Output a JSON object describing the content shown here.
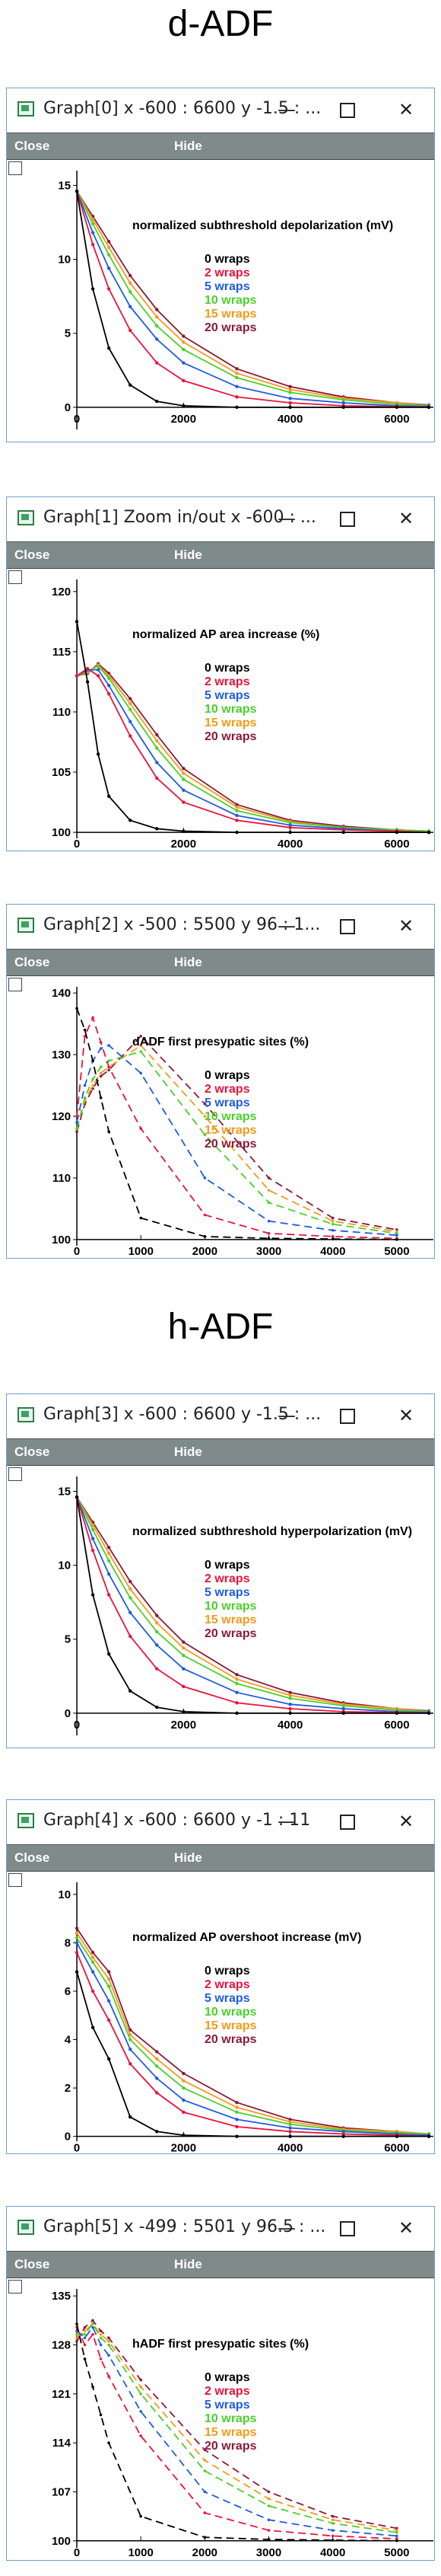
{
  "headings": [
    "d-ADF",
    "h-ADF"
  ],
  "toolbar": {
    "close_label": "Close",
    "hide_label": "Hide"
  },
  "window_controls": {
    "minimize": "—",
    "close": "✕"
  },
  "icons": {
    "app": "graph-window-icon"
  },
  "legend": {
    "labels": [
      "0 wraps",
      "2 wraps",
      "5 wraps",
      "10 wraps",
      "15 wraps",
      "20 wraps"
    ],
    "colors": [
      "#000000",
      "#e8143c",
      "#1f5ce0",
      "#4ccf2e",
      "#f59a1a",
      "#8b1a3a"
    ]
  },
  "windows": [
    {
      "title": "Graph[0]  x -600 : 6600  y -1.5 : ...",
      "plot_title": "normalized subthreshold depolarization (mV)",
      "y_ticks": [
        "0",
        "5",
        "10",
        "15"
      ],
      "x_ticks": [
        "0",
        "2000",
        "4000",
        "6000"
      ]
    },
    {
      "title": "Graph[1] Zoom in/out x -600 : ...",
      "plot_title": "normalized AP area increase (%)",
      "y_ticks": [
        "100",
        "105",
        "110",
        "115",
        "120"
      ],
      "x_ticks": [
        "0",
        "2000",
        "4000",
        "6000"
      ]
    },
    {
      "title": "Graph[2]  x -500 : 5500  y 96 : 1...",
      "plot_title": "dADF first presypatic sites (%)",
      "y_ticks": [
        "100",
        "110",
        "120",
        "130",
        "140"
      ],
      "x_ticks": [
        "0",
        "1000",
        "2000",
        "3000",
        "4000",
        "5000"
      ]
    },
    {
      "title": "Graph[3]  x -600 : 6600  y -1.5 : ...",
      "plot_title": "normalized subthreshold hyperpolarization (mV)",
      "y_ticks": [
        "0",
        "5",
        "10",
        "15"
      ],
      "x_ticks": [
        "0",
        "2000",
        "4000",
        "6000"
      ]
    },
    {
      "title": "Graph[4]  x -600 : 6600  y -1 : 11",
      "plot_title": "normalized AP overshoot increase (mV)",
      "y_ticks": [
        "0",
        "2",
        "4",
        "6",
        "8",
        "10"
      ],
      "x_ticks": [
        "0",
        "2000",
        "4000",
        "6000"
      ]
    },
    {
      "title": "Graph[5]  x -499 : 5501  y 96.5 : ...",
      "plot_title": "hADF first presypatic sites (%)",
      "y_ticks": [
        "100",
        "107",
        "114",
        "121",
        "128",
        "135"
      ],
      "x_ticks": [
        "0",
        "1000",
        "2000",
        "3000",
        "4000",
        "5000"
      ]
    }
  ],
  "chart_data": [
    {
      "type": "line",
      "title": "normalized subthreshold depolarization (mV)",
      "xlim": [
        -600,
        6600
      ],
      "ylim": [
        -1.5,
        16
      ],
      "x": [
        0,
        300,
        600,
        1000,
        1500,
        2000,
        3000,
        4000,
        5000,
        6000,
        6600
      ],
      "series": [
        {
          "name": "0 wraps",
          "values": [
            14.6,
            8.0,
            4.0,
            1.5,
            0.4,
            0.1,
            0,
            0,
            0,
            0,
            0
          ]
        },
        {
          "name": "2 wraps",
          "values": [
            14.6,
            11.0,
            8.0,
            5.2,
            3.0,
            1.8,
            0.7,
            0.3,
            0.1,
            0.05,
            0
          ]
        },
        {
          "name": "5 wraps",
          "values": [
            14.6,
            11.8,
            9.4,
            6.8,
            4.6,
            3.0,
            1.4,
            0.6,
            0.3,
            0.1,
            0.05
          ]
        },
        {
          "name": "10 wraps",
          "values": [
            14.6,
            12.4,
            10.3,
            7.8,
            5.5,
            3.9,
            2.0,
            1.0,
            0.5,
            0.2,
            0.1
          ]
        },
        {
          "name": "15 wraps",
          "values": [
            14.6,
            12.7,
            10.8,
            8.4,
            6.1,
            4.4,
            2.3,
            1.2,
            0.6,
            0.3,
            0.1
          ]
        },
        {
          "name": "20 wraps",
          "values": [
            14.6,
            12.9,
            11.2,
            8.9,
            6.6,
            4.8,
            2.6,
            1.4,
            0.7,
            0.3,
            0.15
          ]
        }
      ]
    },
    {
      "type": "line",
      "title": "normalized AP area increase (%)",
      "xlim": [
        -600,
        6600
      ],
      "ylim": [
        99.5,
        121
      ],
      "x": [
        0,
        200,
        400,
        600,
        1000,
        1500,
        2000,
        3000,
        4000,
        5000,
        6000,
        6600
      ],
      "series": [
        {
          "name": "0 wraps",
          "values": [
            117.5,
            112.5,
            106.5,
            103.0,
            101.0,
            100.3,
            100.1,
            100,
            100,
            100,
            100,
            100
          ]
        },
        {
          "name": "2 wraps",
          "values": [
            113.0,
            113.6,
            113.0,
            111.5,
            108.0,
            104.5,
            102.5,
            101.0,
            100.4,
            100.2,
            100.1,
            100
          ]
        },
        {
          "name": "5 wraps",
          "values": [
            113.0,
            113.5,
            113.5,
            112.2,
            109.2,
            105.8,
            103.5,
            101.4,
            100.6,
            100.3,
            100.1,
            100
          ]
        },
        {
          "name": "10 wraps",
          "values": [
            113.0,
            113.4,
            113.8,
            112.8,
            110.2,
            107.0,
            104.4,
            101.8,
            100.8,
            100.4,
            100.2,
            100.1
          ]
        },
        {
          "name": "15 wraps",
          "values": [
            113.0,
            113.3,
            113.9,
            113.0,
            110.7,
            107.6,
            104.9,
            102.1,
            100.9,
            100.4,
            100.2,
            100.1
          ]
        },
        {
          "name": "20 wraps",
          "values": [
            113.0,
            113.2,
            114.0,
            113.2,
            111.1,
            108.1,
            105.3,
            102.3,
            101.0,
            100.5,
            100.2,
            100.1
          ]
        }
      ]
    },
    {
      "type": "line",
      "title": "dADF first presypatic sites (%)",
      "xlim": [
        -500,
        5500
      ],
      "ylim": [
        99,
        141
      ],
      "x": [
        0,
        125,
        250,
        375,
        500,
        1000,
        2000,
        3000,
        4000,
        5000
      ],
      "series": [
        {
          "name": "0 wraps",
          "values": [
            137.5,
            134.0,
            129.0,
            123.0,
            117.5,
            103.5,
            100.5,
            100.2,
            100.1,
            100
          ]
        },
        {
          "name": "2 wraps",
          "values": [
            120.0,
            133.0,
            136.0,
            132.0,
            128.0,
            118.0,
            104.0,
            101.0,
            100.5,
            100.2
          ]
        },
        {
          "name": "5 wraps",
          "values": [
            119.0,
            125.0,
            129.0,
            131.0,
            131.5,
            127.0,
            110.0,
            103.0,
            101.5,
            100.7
          ]
        },
        {
          "name": "10 wraps",
          "values": [
            118.0,
            123.0,
            126.0,
            128.0,
            129.0,
            130.5,
            117.0,
            106.0,
            102.5,
            101.0
          ]
        },
        {
          "name": "15 wraps",
          "values": [
            118.0,
            122.5,
            125.0,
            127.0,
            128.0,
            131.5,
            120.0,
            108.0,
            103.0,
            101.3
          ]
        },
        {
          "name": "20 wraps",
          "values": [
            117.5,
            122.0,
            124.5,
            126.5,
            127.5,
            133.0,
            122.0,
            110.0,
            103.5,
            101.6
          ]
        }
      ]
    },
    {
      "type": "line",
      "title": "normalized subthreshold hyperpolarization (mV)",
      "xlim": [
        -600,
        6600
      ],
      "ylim": [
        -1.5,
        16
      ],
      "x": [
        0,
        300,
        600,
        1000,
        1500,
        2000,
        3000,
        4000,
        5000,
        6000,
        6600
      ],
      "series": [
        {
          "name": "0 wraps",
          "values": [
            14.6,
            8.0,
            4.0,
            1.5,
            0.4,
            0.1,
            0,
            0,
            0,
            0,
            0
          ]
        },
        {
          "name": "2 wraps",
          "values": [
            14.6,
            11.0,
            8.0,
            5.2,
            3.0,
            1.8,
            0.7,
            0.3,
            0.1,
            0.05,
            0
          ]
        },
        {
          "name": "5 wraps",
          "values": [
            14.6,
            11.8,
            9.4,
            6.8,
            4.6,
            3.0,
            1.4,
            0.6,
            0.3,
            0.1,
            0.05
          ]
        },
        {
          "name": "10 wraps",
          "values": [
            14.6,
            12.4,
            10.3,
            7.8,
            5.5,
            3.9,
            2.0,
            1.0,
            0.5,
            0.2,
            0.1
          ]
        },
        {
          "name": "15 wraps",
          "values": [
            14.6,
            12.7,
            10.8,
            8.4,
            6.1,
            4.4,
            2.3,
            1.2,
            0.6,
            0.3,
            0.1
          ]
        },
        {
          "name": "20 wraps",
          "values": [
            14.6,
            12.9,
            11.2,
            8.9,
            6.6,
            4.8,
            2.6,
            1.4,
            0.7,
            0.3,
            0.15
          ]
        }
      ]
    },
    {
      "type": "line",
      "title": "normalized AP overshoot increase (mV)",
      "xlim": [
        -600,
        6600
      ],
      "ylim": [
        -0.2,
        10.5
      ],
      "x": [
        0,
        300,
        600,
        1000,
        1500,
        2000,
        3000,
        4000,
        5000,
        6000,
        6600
      ],
      "series": [
        {
          "name": "0 wraps",
          "values": [
            6.8,
            4.5,
            3.2,
            0.8,
            0.2,
            0.05,
            0,
            0,
            0,
            0,
            0
          ]
        },
        {
          "name": "2 wraps",
          "values": [
            7.6,
            6.0,
            4.8,
            3.0,
            1.8,
            1.0,
            0.4,
            0.2,
            0.1,
            0.05,
            0
          ]
        },
        {
          "name": "5 wraps",
          "values": [
            8.0,
            6.8,
            5.6,
            3.6,
            2.4,
            1.5,
            0.7,
            0.35,
            0.2,
            0.1,
            0.05
          ]
        },
        {
          "name": "10 wraps",
          "values": [
            8.2,
            7.2,
            6.2,
            4.0,
            2.9,
            2.0,
            1.0,
            0.5,
            0.25,
            0.15,
            0.1
          ]
        },
        {
          "name": "15 wraps",
          "values": [
            8.4,
            7.4,
            6.5,
            4.2,
            3.2,
            2.3,
            1.2,
            0.6,
            0.3,
            0.2,
            0.1
          ]
        },
        {
          "name": "20 wraps",
          "values": [
            8.6,
            7.6,
            6.8,
            4.4,
            3.5,
            2.6,
            1.4,
            0.7,
            0.35,
            0.2,
            0.1
          ]
        }
      ]
    },
    {
      "type": "line",
      "title": "hADF first presypatic sites (%)",
      "xlim": [
        -499,
        5501
      ],
      "ylim": [
        99,
        136
      ],
      "x": [
        0,
        125,
        250,
        375,
        500,
        1000,
        2000,
        3000,
        4000,
        5000
      ],
      "series": [
        {
          "name": "0 wraps",
          "values": [
            131.0,
            126.0,
            122.0,
            118.0,
            114.0,
            103.5,
            100.5,
            100.2,
            100.1,
            100
          ]
        },
        {
          "name": "2 wraps",
          "values": [
            130.5,
            128.0,
            129.5,
            126.0,
            123.5,
            115.0,
            104.0,
            101.5,
            100.7,
            100.3
          ]
        },
        {
          "name": "5 wraps",
          "values": [
            130.0,
            129.0,
            130.5,
            128.0,
            126.5,
            118.5,
            107.0,
            103.0,
            101.5,
            100.7
          ]
        },
        {
          "name": "10 wraps",
          "values": [
            129.5,
            129.5,
            131.0,
            129.0,
            128.0,
            121.0,
            110.0,
            105.0,
            102.5,
            101.2
          ]
        },
        {
          "name": "15 wraps",
          "values": [
            129.0,
            130.0,
            131.0,
            129.5,
            128.5,
            122.0,
            111.5,
            106.0,
            103.0,
            101.5
          ]
        },
        {
          "name": "20 wraps",
          "values": [
            128.5,
            130.5,
            131.5,
            130.0,
            129.0,
            123.0,
            113.0,
            107.0,
            103.5,
            101.8
          ]
        }
      ]
    }
  ]
}
